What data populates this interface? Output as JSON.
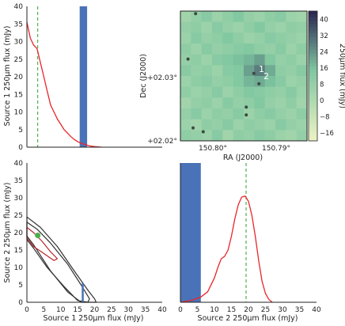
{
  "colors": {
    "curve": "#e8262a",
    "median_line": "#2ca02c",
    "bar": "#4a72b8",
    "contour": "#333333",
    "inner_contour": "#b8262a",
    "marker": "#4daf4a",
    "map_low": "#eef2c4",
    "map_mid": "#7ec6a0",
    "map_high": "#2a2350",
    "source_dot": "#3a4a40"
  },
  "chart_data": [
    {
      "type": "line",
      "panel": "top-left",
      "ylabel": "Source 1 250μm flux  (mJy)",
      "xlim": [
        0,
        40
      ],
      "ylim": [
        0,
        40
      ],
      "yticks": [
        0,
        5,
        10,
        15,
        20,
        25,
        30,
        35,
        40
      ],
      "series": [
        {
          "kind": "pdf-curve",
          "x": [
            0,
            1,
            2,
            3,
            4,
            5,
            6,
            7,
            8,
            9,
            10,
            11,
            12,
            13,
            14,
            15,
            16,
            17,
            18,
            19,
            20,
            22
          ],
          "y": [
            35.5,
            31,
            29,
            28,
            24,
            20,
            16,
            12,
            10,
            8,
            6.5,
            5,
            4,
            3,
            2.2,
            1.6,
            1.1,
            0.8,
            0.5,
            0.3,
            0.15,
            0
          ]
        }
      ],
      "vline": {
        "x": 3.2
      },
      "bar": {
        "x0": 15.6,
        "x1": 17.8,
        "y": 40
      }
    },
    {
      "type": "heatmap",
      "panel": "top-right",
      "xlabel": "RA (J2000)",
      "ylabel": "Dec (J2000)",
      "xticks": [
        "150.80°",
        "150.79°"
      ],
      "yticks": [
        "+02.03°",
        "+02.02°"
      ],
      "colorbar": {
        "label": "250μm flux  (mJy)",
        "ticks": [
          40,
          32,
          24,
          16,
          8,
          0,
          -8,
          -16
        ],
        "range": [
          -20,
          44
        ]
      },
      "source_labels": [
        "1",
        "2"
      ],
      "grid_rows": 12,
      "grid_cols": 12,
      "values": [
        [
          4,
          8,
          12,
          6,
          10,
          14,
          8,
          6,
          10,
          12,
          6,
          4
        ],
        [
          8,
          10,
          6,
          12,
          8,
          6,
          10,
          14,
          8,
          6,
          10,
          8
        ],
        [
          6,
          12,
          8,
          10,
          14,
          10,
          6,
          8,
          12,
          10,
          8,
          6
        ],
        [
          10,
          6,
          12,
          8,
          10,
          12,
          14,
          10,
          8,
          12,
          6,
          10
        ],
        [
          8,
          10,
          6,
          12,
          14,
          16,
          18,
          22,
          14,
          8,
          10,
          6
        ],
        [
          12,
          8,
          10,
          6,
          12,
          14,
          22,
          28,
          20,
          10,
          8,
          12
        ],
        [
          6,
          10,
          12,
          8,
          10,
          14,
          18,
          20,
          16,
          12,
          6,
          8
        ],
        [
          10,
          6,
          8,
          12,
          6,
          10,
          14,
          12,
          10,
          8,
          12,
          6
        ],
        [
          4,
          8,
          10,
          6,
          12,
          8,
          10,
          14,
          8,
          6,
          10,
          4
        ],
        [
          8,
          12,
          6,
          10,
          8,
          12,
          6,
          10,
          12,
          8,
          6,
          10
        ],
        [
          6,
          4,
          10,
          8,
          12,
          6,
          10,
          8,
          6,
          12,
          8,
          6
        ],
        [
          10,
          8,
          6,
          12,
          4,
          10,
          8,
          12,
          10,
          6,
          4,
          8
        ]
      ],
      "sources": [
        {
          "ra": 0.12,
          "dec": 0.02
        },
        {
          "ra": 0.06,
          "dec": 0.37
        },
        {
          "ra": 0.58,
          "dec": 0.48
        },
        {
          "ra": 0.62,
          "dec": 0.56
        },
        {
          "ra": 0.52,
          "dec": 0.74
        },
        {
          "ra": 0.52,
          "dec": 0.8
        },
        {
          "ra": 0.1,
          "dec": 0.9
        },
        {
          "ra": 0.18,
          "dec": 0.93
        }
      ]
    },
    {
      "type": "contour",
      "panel": "bottom-left",
      "xlabel": "Source 1 250μm flux  (mJy)",
      "ylabel": "Source 2 250μm flux  (mJy)",
      "xlim": [
        0,
        40
      ],
      "ylim": [
        0,
        40
      ],
      "xticks": [
        0,
        5,
        10,
        15,
        20,
        25,
        30,
        35,
        40
      ],
      "yticks": [
        0,
        5,
        10,
        15,
        20,
        25,
        30,
        35,
        40
      ],
      "contours": [
        {
          "level": "outer",
          "points": [
            [
              0,
              24.5
            ],
            [
              4,
              21.5
            ],
            [
              9,
              16
            ],
            [
              14,
              9
            ],
            [
              18,
              3.5
            ],
            [
              20,
              1
            ],
            [
              20.5,
              0
            ],
            [
              16,
              0
            ],
            [
              12,
              3
            ],
            [
              7,
              9
            ],
            [
              2,
              16.5
            ],
            [
              0,
              19
            ]
          ]
        },
        {
          "level": "middle",
          "points": [
            [
              0,
              23
            ],
            [
              3,
              21
            ],
            [
              7,
              17
            ],
            [
              12,
              11
            ],
            [
              16,
              5
            ],
            [
              18.5,
              1
            ],
            [
              18,
              0
            ],
            [
              15,
              0.5
            ],
            [
              11,
              4.5
            ],
            [
              6,
              10
            ],
            [
              2,
              15.5
            ],
            [
              0,
              18
            ]
          ]
        },
        {
          "level": "inner",
          "points": [
            [
              0,
              21.5
            ],
            [
              2,
              20
            ],
            [
              4.5,
              17.5
            ],
            [
              7,
              14.5
            ],
            [
              9,
              12.5
            ],
            [
              8,
              12
            ],
            [
              5,
              14
            ],
            [
              2,
              16
            ],
            [
              0,
              18.5
            ]
          ]
        }
      ],
      "marker": {
        "x": 3.2,
        "y": 19.2
      },
      "segment": {
        "x": 16.5,
        "y0": 0,
        "y1": 5.5
      }
    },
    {
      "type": "line",
      "panel": "bottom-right",
      "xlabel": "Source 2 250μm flux  (mJy)",
      "xlim": [
        0,
        40
      ],
      "ylim": [
        0,
        40
      ],
      "xticks": [
        0,
        5,
        10,
        15,
        20,
        25,
        30,
        35,
        40
      ],
      "series": [
        {
          "kind": "pdf-curve",
          "x": [
            0,
            2,
            4,
            6,
            8,
            10,
            11,
            12,
            13,
            14,
            15,
            16,
            17,
            18,
            19,
            20,
            21,
            22,
            23,
            24,
            25,
            26,
            27
          ],
          "y": [
            0,
            0.3,
            0.8,
            1.5,
            3,
            7,
            10,
            12.5,
            13.2,
            15,
            19,
            24,
            28,
            30.2,
            30.5,
            29,
            25,
            19,
            12,
            6,
            2.5,
            0.8,
            0
          ]
        }
      ],
      "vline": {
        "x": 19.3
      },
      "bar": {
        "x0": 0,
        "x1": 6,
        "y": 40
      }
    }
  ]
}
